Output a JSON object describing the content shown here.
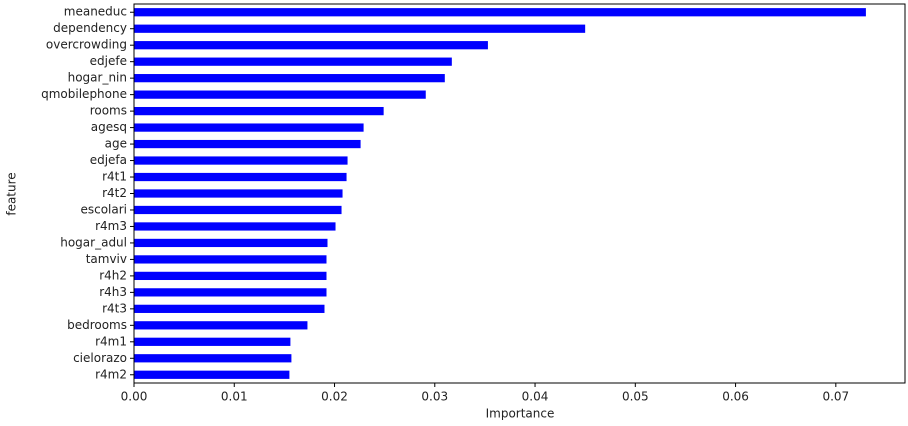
{
  "chart_data": {
    "type": "barh",
    "xlabel": "Importance",
    "ylabel": "feature",
    "categories": [
      "meaneduc",
      "dependency",
      "overcrowding",
      "edjefe",
      "hogar_nin",
      "qmobilephone",
      "rooms",
      "agesq",
      "age",
      "edjefa",
      "r4t1",
      "r4t2",
      "escolari",
      "r4m3",
      "hogar_adul",
      "tamviv",
      "r4h2",
      "r4h3",
      "r4t3",
      "bedrooms",
      "r4m1",
      "cielorazo",
      "r4m2"
    ],
    "values": [
      0.073,
      0.045,
      0.0353,
      0.0317,
      0.031,
      0.0291,
      0.0249,
      0.0229,
      0.0226,
      0.0213,
      0.0212,
      0.0208,
      0.0207,
      0.0201,
      0.0193,
      0.0192,
      0.0192,
      0.0192,
      0.019,
      0.0173,
      0.0156,
      0.0157,
      0.0155
    ],
    "color": "#0000ff",
    "xlim": [
      0,
      0.0769
    ],
    "xticks": [
      {
        "value": 0,
        "label": "0.00"
      },
      {
        "value": 0.01,
        "label": "0.01"
      },
      {
        "value": 0.02,
        "label": "0.02"
      },
      {
        "value": 0.03,
        "label": "0.03"
      },
      {
        "value": 0.04,
        "label": "0.04"
      },
      {
        "value": 0.05,
        "label": "0.05"
      },
      {
        "value": 0.06,
        "label": "0.06"
      },
      {
        "value": 0.07,
        "label": "0.07"
      }
    ],
    "grid": false
  }
}
